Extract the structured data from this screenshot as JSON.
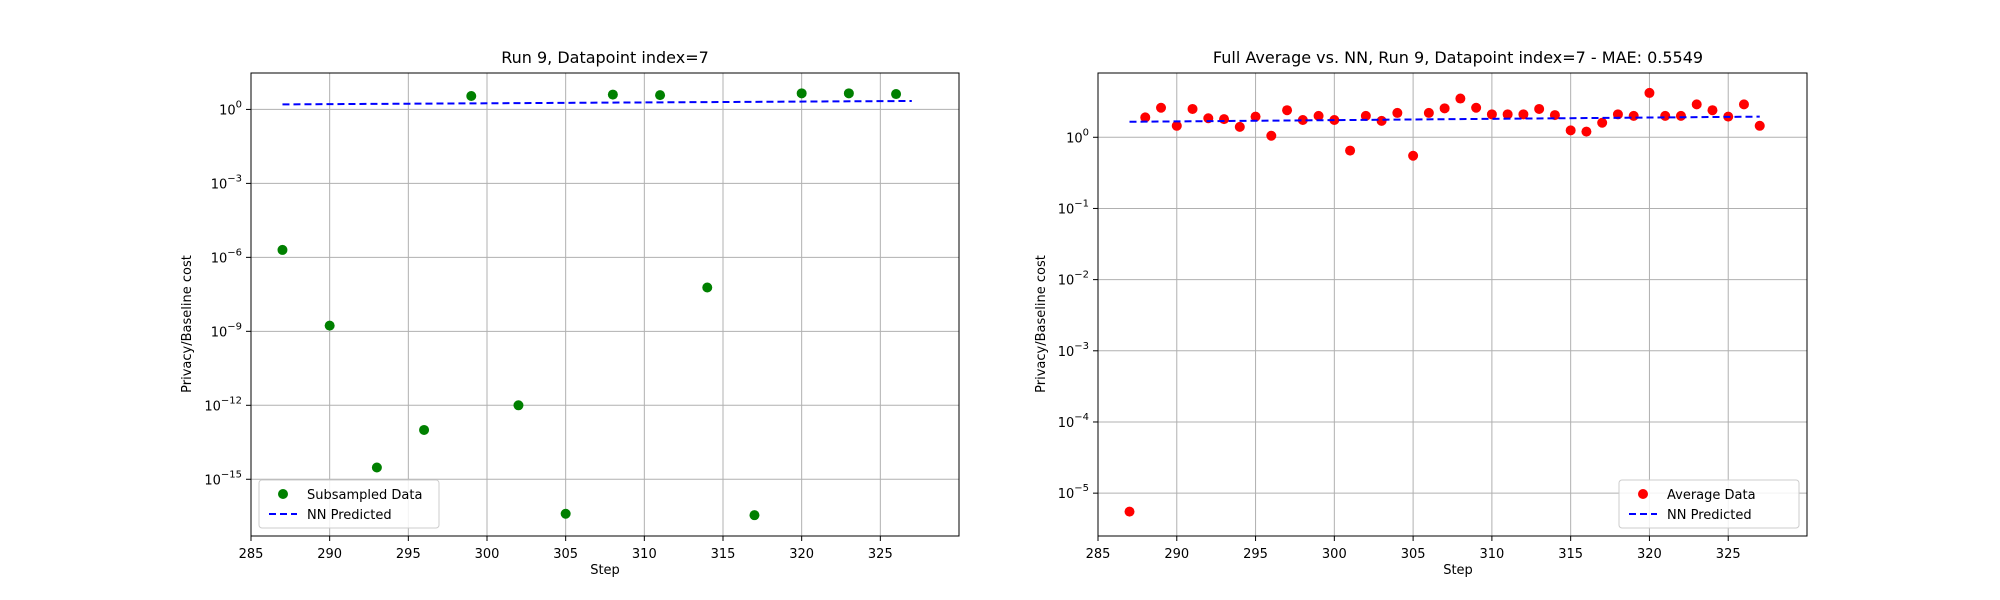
{
  "chart_data": [
    {
      "type": "scatter",
      "title": "Run 9, Datapoint index=7",
      "xlabel": "Step",
      "ylabel": "Privacy/Baseline cost",
      "xlim": [
        285,
        330
      ],
      "ylim": [
        5e-18,
        30.0
      ],
      "yscale": "log",
      "grid": true,
      "legend_placement": "lower-left",
      "xticks": [
        285,
        290,
        295,
        300,
        305,
        310,
        315,
        320,
        325
      ],
      "xtick_labels": [
        "285",
        "290",
        "295",
        "300",
        "305",
        "310",
        "315",
        "320",
        "325"
      ],
      "yticks": [
        1,
        0.001,
        1e-06,
        1e-09,
        1e-12,
        1e-15
      ],
      "ytick_labels": [
        {
          "base": "10",
          "exp": "0"
        },
        {
          "base": "10",
          "exp": "−3"
        },
        {
          "base": "10",
          "exp": "−6"
        },
        {
          "base": "10",
          "exp": "−9"
        },
        {
          "base": "10",
          "exp": "−12"
        },
        {
          "base": "10",
          "exp": "−15"
        }
      ],
      "series": [
        {
          "name": "Subsampled Data",
          "kind": "scatter",
          "color": "#008000",
          "x": [
            287,
            290,
            293,
            296,
            299,
            302,
            305,
            308,
            311,
            314,
            317,
            320,
            323,
            326
          ],
          "y": [
            2e-06,
            1.7e-09,
            3e-15,
            1e-13,
            3.5,
            1e-12,
            4e-17,
            4.0,
            3.8,
            6e-08,
            3.5e-17,
            4.5,
            4.5,
            4.2
          ]
        },
        {
          "name": "NN Predicted",
          "kind": "line",
          "style": "dashed",
          "color": "#0000ff",
          "x": [
            287,
            327
          ],
          "y": [
            1.6,
            2.2
          ]
        }
      ]
    },
    {
      "type": "scatter",
      "title": "Full Average vs. NN, Run 9, Datapoint index=7 - MAE: 0.5549",
      "xlabel": "Step",
      "ylabel": "Privacy/Baseline cost",
      "xlim": [
        285,
        330
      ],
      "ylim": [
        2.5e-06,
        8
      ],
      "yscale": "log",
      "grid": true,
      "legend_placement": "lower-right",
      "xticks": [
        285,
        290,
        295,
        300,
        305,
        310,
        315,
        320,
        325
      ],
      "xtick_labels": [
        "285",
        "290",
        "295",
        "300",
        "305",
        "310",
        "315",
        "320",
        "325"
      ],
      "yticks": [
        1,
        0.1,
        0.01,
        0.001,
        0.0001,
        1e-05
      ],
      "ytick_labels": [
        {
          "base": "10",
          "exp": "0"
        },
        {
          "base": "10",
          "exp": "−1"
        },
        {
          "base": "10",
          "exp": "−2"
        },
        {
          "base": "10",
          "exp": "−3"
        },
        {
          "base": "10",
          "exp": "−4"
        },
        {
          "base": "10",
          "exp": "−5"
        }
      ],
      "series": [
        {
          "name": "Average Data",
          "kind": "scatter",
          "color": "#ff0000",
          "x": [
            287,
            288,
            289,
            290,
            291,
            292,
            293,
            294,
            295,
            296,
            297,
            298,
            299,
            300,
            301,
            302,
            303,
            304,
            305,
            306,
            307,
            308,
            309,
            310,
            311,
            312,
            313,
            314,
            315,
            316,
            317,
            318,
            319,
            320,
            321,
            322,
            323,
            324,
            325,
            326,
            327
          ],
          "y": [
            5.5e-06,
            1.9,
            2.6,
            1.45,
            2.5,
            1.85,
            1.8,
            1.4,
            1.95,
            1.05,
            2.4,
            1.75,
            2.0,
            1.75,
            0.65,
            2.0,
            1.7,
            2.2,
            0.55,
            2.2,
            2.55,
            3.5,
            2.6,
            2.1,
            2.1,
            2.1,
            2.5,
            2.05,
            1.25,
            1.2,
            1.6,
            2.1,
            2.0,
            4.2,
            2.0,
            2.0,
            2.9,
            2.4,
            1.95,
            2.9,
            1.45
          ]
        },
        {
          "name": "NN Predicted",
          "kind": "line",
          "style": "dashed",
          "color": "#0000ff",
          "x": [
            287,
            327
          ],
          "y": [
            1.65,
            1.95
          ]
        }
      ]
    }
  ]
}
